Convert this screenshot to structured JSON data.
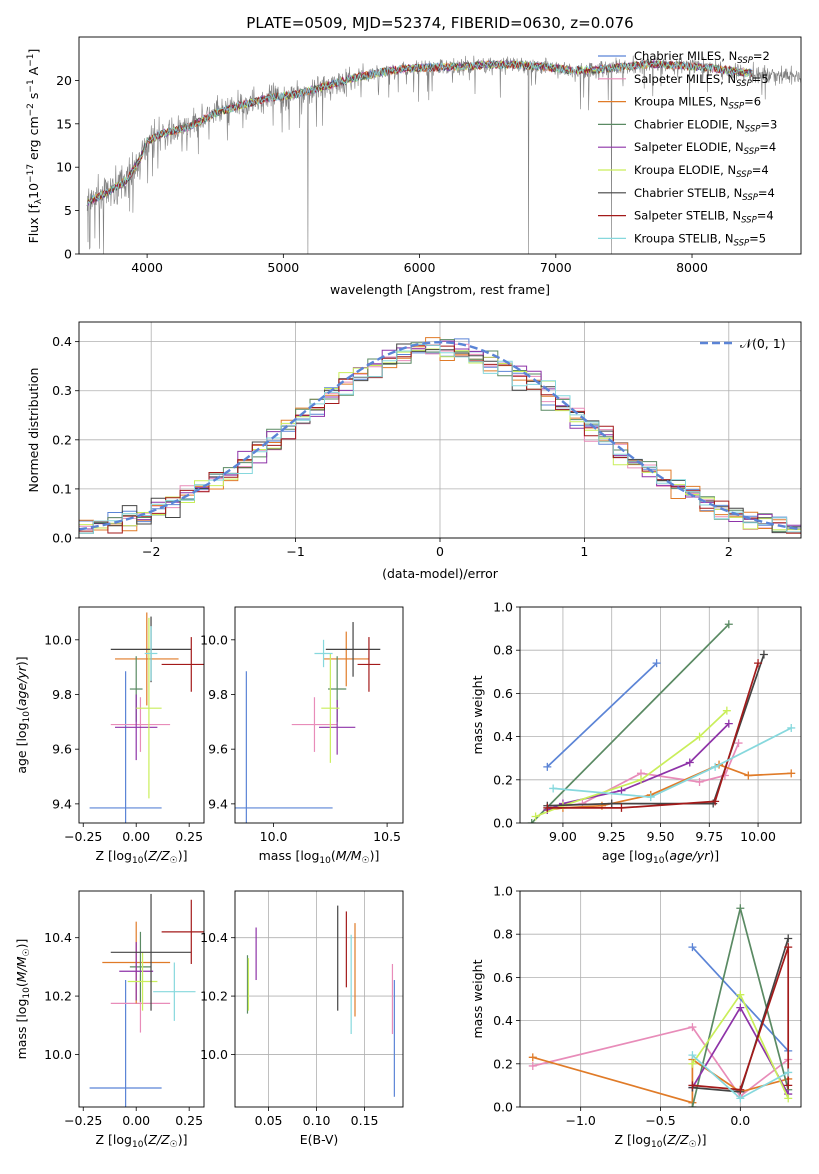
{
  "colors": {
    "chabrier_miles": "#5b84d6",
    "salpeter_miles": "#e88cb9",
    "kroupa_miles": "#e07b28",
    "chabrier_elodie": "#5a8a63",
    "salpeter_elodie": "#8e33a8",
    "kroupa_elodie": "#c9ee5a",
    "chabrier_stelib": "#444444",
    "salpeter_stelib": "#a31a1a",
    "kroupa_stelib": "#86d8dd",
    "spectrum": "#808080",
    "normal": "#5b84d6"
  },
  "chart_data": [
    {
      "id": "spectrum",
      "type": "line",
      "title": "PLATE=0509, MJD=52374, FIBERID=0630, z=0.076",
      "xlabel": "wavelength [Angstrom, rest frame]",
      "ylabel": "Flux [f_λ10⁻¹⁷ erg cm⁻² s⁻¹ A⁻¹]",
      "xlim": [
        3500,
        8800
      ],
      "ylim": [
        0,
        25
      ],
      "xticks": [
        4000,
        5000,
        6000,
        7000,
        8000
      ],
      "yticks": [
        0,
        5,
        10,
        15,
        20
      ],
      "legend_position": "top-right",
      "legend": [
        {
          "label": "Chabrier MILES, N_SSP=2",
          "text": "Chabrier MILES, N",
          "sub": "SSP",
          "tail": "=2",
          "color": "chabrier_miles"
        },
        {
          "label": "Salpeter MILES, N_SSP=5",
          "text": "Salpeter MILES, N",
          "sub": "SSP",
          "tail": "=5",
          "color": "salpeter_miles"
        },
        {
          "label": "Kroupa MILES, N_SSP=6",
          "text": "Kroupa MILES, N",
          "sub": "SSP",
          "tail": "=6",
          "color": "kroupa_miles"
        },
        {
          "label": "Chabrier ELODIE, N_SSP=3",
          "text": "Chabrier ELODIE, N",
          "sub": "SSP",
          "tail": "=3",
          "color": "chabrier_elodie"
        },
        {
          "label": "Salpeter ELODIE, N_SSP=4",
          "text": "Salpeter ELODIE, N",
          "sub": "SSP",
          "tail": "=4",
          "color": "salpeter_elodie"
        },
        {
          "label": "Kroupa ELODIE, N_SSP=4",
          "text": "Kroupa ELODIE, N",
          "sub": "SSP",
          "tail": "=4",
          "color": "kroupa_elodie"
        },
        {
          "label": "Chabrier STELIB, N_SSP=4",
          "text": "Chabrier STELIB, N",
          "sub": "SSP",
          "tail": "=4",
          "color": "chabrier_stelib"
        },
        {
          "label": "Salpeter STELIB, N_SSP=4",
          "text": "Salpeter STELIB, N",
          "sub": "SSP",
          "tail": "=4",
          "color": "salpeter_stelib"
        },
        {
          "label": "Kroupa STELIB, N_SSP=5",
          "text": "Kroupa STELIB, N",
          "sub": "SSP",
          "tail": "=5",
          "color": "kroupa_stelib"
        }
      ],
      "continuum": [
        [
          3560,
          6.0
        ],
        [
          3700,
          7.0
        ],
        [
          3850,
          8.5
        ],
        [
          3950,
          11.0
        ],
        [
          4000,
          13.0
        ],
        [
          4100,
          13.8
        ],
        [
          4300,
          14.6
        ],
        [
          4500,
          16.2
        ],
        [
          4700,
          17.2
        ],
        [
          4900,
          18.0
        ],
        [
          5100,
          18.4
        ],
        [
          5300,
          19.3
        ],
        [
          5500,
          20.2
        ],
        [
          5700,
          20.9
        ],
        [
          5900,
          21.4
        ],
        [
          6100,
          21.5
        ],
        [
          6300,
          21.6
        ],
        [
          6500,
          21.8
        ],
        [
          6700,
          21.8
        ],
        [
          6900,
          21.6
        ],
        [
          7100,
          21.2
        ],
        [
          7300,
          21.2
        ],
        [
          7500,
          21.6
        ],
        [
          7700,
          21.9
        ],
        [
          7900,
          21.7
        ],
        [
          8100,
          21.5
        ],
        [
          8300,
          21.1
        ],
        [
          8500,
          20.7
        ],
        [
          8800,
          20.4
        ]
      ],
      "spectrum_range": [
        3560,
        8800
      ],
      "model_range": [
        3560,
        8440
      ],
      "drops": [
        [
          5180,
          0
        ],
        [
          6800,
          0
        ],
        [
          7410,
          0
        ]
      ]
    },
    {
      "id": "residuals",
      "type": "histogram",
      "xlabel": "(data-model)/error",
      "ylabel": "Normed distribution",
      "xlim": [
        -2.5,
        2.5
      ],
      "ylim": [
        0,
        0.44
      ],
      "xticks": [
        -2,
        -1,
        0,
        1,
        2
      ],
      "yticks": [
        0.0,
        0.1,
        0.2,
        0.3,
        0.4
      ],
      "grid": true,
      "legend_position": "top-right",
      "legend": {
        "label": "𝒩(0, 1)",
        "style": "dashed",
        "color": "normal"
      },
      "bin_width": 0.1,
      "series_colors": [
        "chabrier_miles",
        "salpeter_miles",
        "kroupa_miles",
        "chabrier_elodie",
        "salpeter_elodie",
        "kroupa_elodie",
        "chabrier_stelib",
        "salpeter_stelib",
        "kroupa_stelib"
      ]
    },
    {
      "id": "age_vs_Z",
      "type": "errorbar",
      "xlabel": "Z [log₁₀(Z/Z☉)]",
      "ylabel": "age  [log₁₀(age/yr)]",
      "xlim": [
        -0.27,
        0.32
      ],
      "ylim": [
        9.33,
        10.12
      ],
      "xticks": [
        -0.25,
        0.0,
        0.25
      ],
      "yticks": [
        9.4,
        9.6,
        9.8,
        10.0
      ],
      "grid": false,
      "points": [
        {
          "color": "chabrier_miles",
          "x": -0.05,
          "xerr": 0.17,
          "y": 9.385,
          "yerr": 0.5
        },
        {
          "color": "salpeter_miles",
          "x": 0.02,
          "xerr": 0.14,
          "y": 9.69,
          "yerr": 0.1
        },
        {
          "color": "kroupa_miles",
          "x": 0.05,
          "xerr": 0.15,
          "y": 9.93,
          "yerr": 0.17
        },
        {
          "color": "chabrier_elodie",
          "x": 0.0,
          "xerr": 0.03,
          "y": 9.82,
          "yerr": 0.12
        },
        {
          "color": "salpeter_elodie",
          "x": 0.0,
          "xerr": 0.1,
          "y": 9.68,
          "yerr": 0.12
        },
        {
          "color": "kroupa_elodie",
          "x": 0.06,
          "xerr": 0.06,
          "y": 9.75,
          "yerr": 0.33
        },
        {
          "color": "chabrier_stelib",
          "x": 0.07,
          "xerr": 0.19,
          "y": 9.965,
          "yerr": 0.12
        },
        {
          "color": "salpeter_stelib",
          "x": 0.26,
          "xerr": 0.14,
          "y": 9.91,
          "yerr": 0.1
        },
        {
          "color": "kroupa_stelib",
          "x": 0.07,
          "xerr": 0.03,
          "y": 9.95,
          "yerr": 0.1
        }
      ]
    },
    {
      "id": "age_vs_mass",
      "type": "errorbar",
      "xlabel": "mass [log₁₀(M/M☉)]",
      "ylabel": "",
      "xlim": [
        9.83,
        10.57
      ],
      "ylim": [
        9.33,
        10.12
      ],
      "xticks": [
        10.0,
        10.5
      ],
      "yticks": [
        9.4,
        9.6,
        9.8,
        10.0
      ],
      "grid": false,
      "points": [
        {
          "color": "chabrier_miles",
          "x": 9.88,
          "xerr": 0.38,
          "y": 9.385,
          "yerr": 0.5
        },
        {
          "color": "salpeter_miles",
          "x": 10.18,
          "xerr": 0.1,
          "y": 9.69,
          "yerr": 0.1
        },
        {
          "color": "kroupa_miles",
          "x": 10.32,
          "xerr": 0.1,
          "y": 9.93,
          "yerr": 0.1
        },
        {
          "color": "chabrier_elodie",
          "x": 10.28,
          "xerr": 0.04,
          "y": 9.82,
          "yerr": 0.12
        },
        {
          "color": "salpeter_elodie",
          "x": 10.28,
          "xerr": 0.08,
          "y": 9.68,
          "yerr": 0.1
        },
        {
          "color": "kroupa_elodie",
          "x": 10.25,
          "xerr": 0.04,
          "y": 9.75,
          "yerr": 0.2
        },
        {
          "color": "chabrier_stelib",
          "x": 10.35,
          "xerr": 0.12,
          "y": 9.965,
          "yerr": 0.1
        },
        {
          "color": "salpeter_stelib",
          "x": 10.42,
          "xerr": 0.05,
          "y": 9.91,
          "yerr": 0.1
        },
        {
          "color": "kroupa_stelib",
          "x": 10.22,
          "xerr": 0.04,
          "y": 9.95,
          "yerr": 0.05
        }
      ]
    },
    {
      "id": "weight_vs_age",
      "type": "line",
      "xlabel": "age  [log₁₀(age/yr)]",
      "ylabel": "mass weight",
      "xlim": [
        8.78,
        10.22
      ],
      "ylim": [
        0,
        1.0
      ],
      "xticks": [
        9.0,
        9.25,
        9.5,
        9.75,
        10.0
      ],
      "yticks": [
        0.0,
        0.2,
        0.4,
        0.6,
        0.8,
        1.0
      ],
      "grid": true,
      "series": [
        {
          "color": "chabrier_miles",
          "points": [
            [
              8.92,
              0.26
            ],
            [
              9.48,
              0.74
            ]
          ]
        },
        {
          "color": "salpeter_miles",
          "points": [
            [
              8.92,
              0.07
            ],
            [
              9.1,
              0.09
            ],
            [
              9.4,
              0.23
            ],
            [
              9.7,
              0.19
            ],
            [
              9.83,
              0.22
            ],
            [
              9.9,
              0.37
            ]
          ]
        },
        {
          "color": "kroupa_miles",
          "points": [
            [
              8.92,
              0.06
            ],
            [
              9.0,
              0.07
            ],
            [
              9.2,
              0.08
            ],
            [
              9.45,
              0.13
            ],
            [
              9.8,
              0.27
            ],
            [
              9.95,
              0.22
            ],
            [
              10.17,
              0.23
            ]
          ]
        },
        {
          "color": "chabrier_elodie",
          "points": [
            [
              8.84,
              0.0
            ],
            [
              9.85,
              0.92
            ]
          ]
        },
        {
          "color": "salpeter_elodie",
          "points": [
            [
              8.92,
              0.06
            ],
            [
              9.0,
              0.09
            ],
            [
              9.3,
              0.15
            ],
            [
              9.65,
              0.28
            ],
            [
              9.85,
              0.46
            ]
          ]
        },
        {
          "color": "kroupa_elodie",
          "points": [
            [
              8.86,
              0.03
            ],
            [
              9.0,
              0.08
            ],
            [
              9.4,
              0.2
            ],
            [
              9.7,
              0.4
            ],
            [
              9.84,
              0.52
            ]
          ]
        },
        {
          "color": "chabrier_stelib",
          "points": [
            [
              8.92,
              0.08
            ],
            [
              9.25,
              0.09
            ],
            [
              9.77,
              0.09
            ],
            [
              10.03,
              0.78
            ]
          ]
        },
        {
          "color": "salpeter_stelib",
          "points": [
            [
              8.92,
              0.07
            ],
            [
              9.3,
              0.07
            ],
            [
              9.78,
              0.1
            ],
            [
              10.0,
              0.74
            ]
          ]
        },
        {
          "color": "kroupa_stelib",
          "points": [
            [
              8.95,
              0.16
            ],
            [
              9.45,
              0.12
            ],
            [
              9.78,
              0.26
            ],
            [
              10.17,
              0.44
            ]
          ]
        }
      ]
    },
    {
      "id": "mass_vs_Z",
      "type": "errorbar",
      "xlabel": "Z [log₁₀(Z/Z☉)]",
      "ylabel": "mass [log₁₀(M/M☉)]",
      "xlim": [
        -0.27,
        0.32
      ],
      "ylim": [
        9.82,
        10.56
      ],
      "xticks": [
        -0.25,
        0.0,
        0.25
      ],
      "yticks": [
        10.0,
        10.2,
        10.4
      ],
      "grid": false,
      "points": [
        {
          "color": "chabrier_miles",
          "x": -0.05,
          "xerr": 0.17,
          "y": 9.885,
          "yerr": 0.37
        },
        {
          "color": "salpeter_miles",
          "x": 0.02,
          "xerr": 0.14,
          "y": 10.175,
          "yerr": 0.1
        },
        {
          "color": "kroupa_miles",
          "x": 0.0,
          "xerr": 0.16,
          "y": 10.315,
          "yerr": 0.14
        },
        {
          "color": "chabrier_elodie",
          "x": 0.02,
          "xerr": 0.05,
          "y": 10.3,
          "yerr": 0.12
        },
        {
          "color": "salpeter_elodie",
          "x": 0.0,
          "xerr": 0.08,
          "y": 10.285,
          "yerr": 0.1
        },
        {
          "color": "kroupa_elodie",
          "x": 0.03,
          "xerr": 0.07,
          "y": 10.25,
          "yerr": 0.1
        },
        {
          "color": "chabrier_stelib",
          "x": 0.07,
          "xerr": 0.19,
          "y": 10.35,
          "yerr": 0.2
        },
        {
          "color": "salpeter_stelib",
          "x": 0.26,
          "xerr": 0.14,
          "y": 10.42,
          "yerr": 0.11
        },
        {
          "color": "kroupa_stelib",
          "x": 0.18,
          "xerr": 0.1,
          "y": 10.215,
          "yerr": 0.1
        }
      ]
    },
    {
      "id": "mass_vs_ebv",
      "type": "errorbar",
      "xlabel": "E(B-V)",
      "ylabel": "",
      "xlim": [
        0.015,
        0.19
      ],
      "ylim": [
        9.82,
        10.56
      ],
      "xticks": [
        0.05,
        0.1,
        0.15
      ],
      "yticks": [
        10.0,
        10.2,
        10.4
      ],
      "grid": true,
      "points": [
        {
          "color": "chabrier_miles",
          "x": 0.181,
          "xerr": 0.0,
          "y": 10.055,
          "yerr": 0.2
        },
        {
          "color": "salpeter_miles",
          "x": 0.179,
          "xerr": 0.0,
          "y": 10.19,
          "yerr": 0.12
        },
        {
          "color": "kroupa_miles",
          "x": 0.14,
          "xerr": 0.0,
          "y": 10.29,
          "yerr": 0.16
        },
        {
          "color": "chabrier_elodie",
          "x": 0.028,
          "xerr": 0.0,
          "y": 10.24,
          "yerr": 0.1
        },
        {
          "color": "salpeter_elodie",
          "x": 0.037,
          "xerr": 0.0,
          "y": 10.345,
          "yerr": 0.09
        },
        {
          "color": "kroupa_elodie",
          "x": 0.029,
          "xerr": 0.0,
          "y": 10.24,
          "yerr": 0.09
        },
        {
          "color": "chabrier_stelib",
          "x": 0.122,
          "xerr": 0.0,
          "y": 10.33,
          "yerr": 0.18
        },
        {
          "color": "salpeter_stelib",
          "x": 0.131,
          "xerr": 0.0,
          "y": 10.36,
          "yerr": 0.13
        },
        {
          "color": "kroupa_stelib",
          "x": 0.136,
          "xerr": 0.0,
          "y": 10.24,
          "yerr": 0.17
        }
      ]
    },
    {
      "id": "weight_vs_Z",
      "type": "line",
      "xlabel": "Z [log₁₀(Z/Z☉)]",
      "ylabel": "mass weight",
      "xlim": [
        -1.38,
        0.38
      ],
      "ylim": [
        0,
        1.0
      ],
      "xticks": [
        -1.0,
        -0.5,
        0.0
      ],
      "yticks": [
        0.0,
        0.2,
        0.4,
        0.6,
        0.8,
        1.0
      ],
      "grid": true,
      "series": [
        {
          "color": "chabrier_miles",
          "points": [
            [
              -0.3,
              0.74
            ],
            [
              0.3,
              0.26
            ]
          ]
        },
        {
          "color": "salpeter_miles",
          "points": [
            [
              -1.3,
              0.19
            ],
            [
              -0.3,
              0.37
            ],
            [
              0.0,
              0.05
            ],
            [
              0.3,
              0.22
            ]
          ]
        },
        {
          "color": "kroupa_miles",
          "points": [
            [
              -1.3,
              0.23
            ],
            [
              -0.3,
              0.02
            ],
            [
              -0.3,
              0.22
            ],
            [
              0.0,
              0.07
            ],
            [
              0.3,
              0.13
            ]
          ]
        },
        {
          "color": "chabrier_elodie",
          "points": [
            [
              -0.3,
              0.0
            ],
            [
              0.0,
              0.92
            ],
            [
              0.3,
              0.08
            ]
          ]
        },
        {
          "color": "salpeter_elodie",
          "points": [
            [
              -0.3,
              0.09
            ],
            [
              0.0,
              0.46
            ],
            [
              0.3,
              0.06
            ]
          ]
        },
        {
          "color": "kroupa_elodie",
          "points": [
            [
              -0.3,
              0.2
            ],
            [
              0.0,
              0.52
            ],
            [
              0.3,
              0.04
            ]
          ]
        },
        {
          "color": "chabrier_stelib",
          "points": [
            [
              -0.3,
              0.09
            ],
            [
              0.0,
              0.07
            ],
            [
              0.3,
              0.78
            ]
          ]
        },
        {
          "color": "salpeter_stelib",
          "points": [
            [
              -0.3,
              0.1
            ],
            [
              0.0,
              0.08
            ],
            [
              0.3,
              0.74
            ],
            [
              0.3,
              0.1
            ]
          ]
        },
        {
          "color": "kroupa_stelib",
          "points": [
            [
              -0.3,
              0.24
            ],
            [
              0.0,
              0.04
            ],
            [
              0.3,
              0.16
            ]
          ]
        }
      ]
    }
  ]
}
